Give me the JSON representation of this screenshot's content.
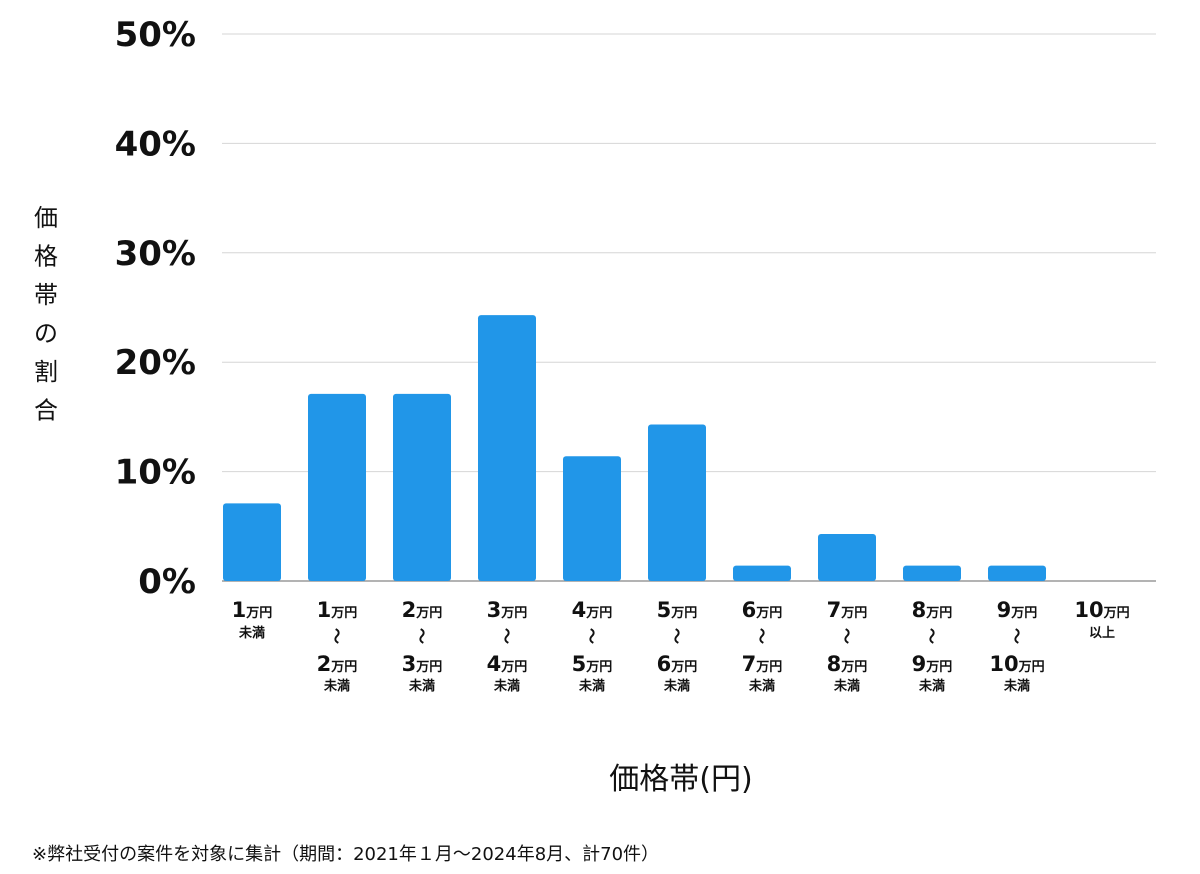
{
  "chart_data": {
    "type": "bar",
    "title": "",
    "xlabel": "価格帯(円)",
    "ylabel": "価格帯の割合",
    "ylim": [
      0,
      50
    ],
    "y_ticks": [
      "0%",
      "10%",
      "20%",
      "30%",
      "40%",
      "50%"
    ],
    "y_tick_values": [
      0,
      10,
      20,
      30,
      40,
      50
    ],
    "grid": true,
    "bar_color": "#2196E8",
    "categories": [
      "1万円未満",
      "1万円〜2万円未満",
      "2万円〜3万円未満",
      "3万円〜4万円未満",
      "4万円〜5万円未満",
      "5万円〜6万円未満",
      "6万円〜7万円未満",
      "7万円〜8万円未満",
      "8万円〜9万円未満",
      "9万円〜10万円未満",
      "10万円以上"
    ],
    "category_labels": [
      {
        "from_num": "1",
        "from_unit": "万円",
        "to_num": "",
        "to_unit": "",
        "suffix": "未満"
      },
      {
        "from_num": "1",
        "from_unit": "万円",
        "to_num": "2",
        "to_unit": "万円",
        "suffix": "未満"
      },
      {
        "from_num": "2",
        "from_unit": "万円",
        "to_num": "3",
        "to_unit": "万円",
        "suffix": "未満"
      },
      {
        "from_num": "3",
        "from_unit": "万円",
        "to_num": "4",
        "to_unit": "万円",
        "suffix": "未満"
      },
      {
        "from_num": "4",
        "from_unit": "万円",
        "to_num": "5",
        "to_unit": "万円",
        "suffix": "未満"
      },
      {
        "from_num": "5",
        "from_unit": "万円",
        "to_num": "6",
        "to_unit": "万円",
        "suffix": "未満"
      },
      {
        "from_num": "6",
        "from_unit": "万円",
        "to_num": "7",
        "to_unit": "万円",
        "suffix": "未満"
      },
      {
        "from_num": "7",
        "from_unit": "万円",
        "to_num": "8",
        "to_unit": "万円",
        "suffix": "未満"
      },
      {
        "from_num": "8",
        "from_unit": "万円",
        "to_num": "9",
        "to_unit": "万円",
        "suffix": "未満"
      },
      {
        "from_num": "9",
        "from_unit": "万円",
        "to_num": "10",
        "to_unit": "万円",
        "suffix": "未満"
      },
      {
        "from_num": "10",
        "from_unit": "万円",
        "to_num": "",
        "to_unit": "",
        "suffix": "以上"
      }
    ],
    "range_mark": "〜",
    "values": [
      7.1,
      17.1,
      17.1,
      24.3,
      11.4,
      14.3,
      1.4,
      4.3,
      1.4,
      1.4,
      0
    ]
  },
  "footnote": "※弊社受付の案件を対象に集計（期間：2021年１月〜2024年8月、計70件）"
}
